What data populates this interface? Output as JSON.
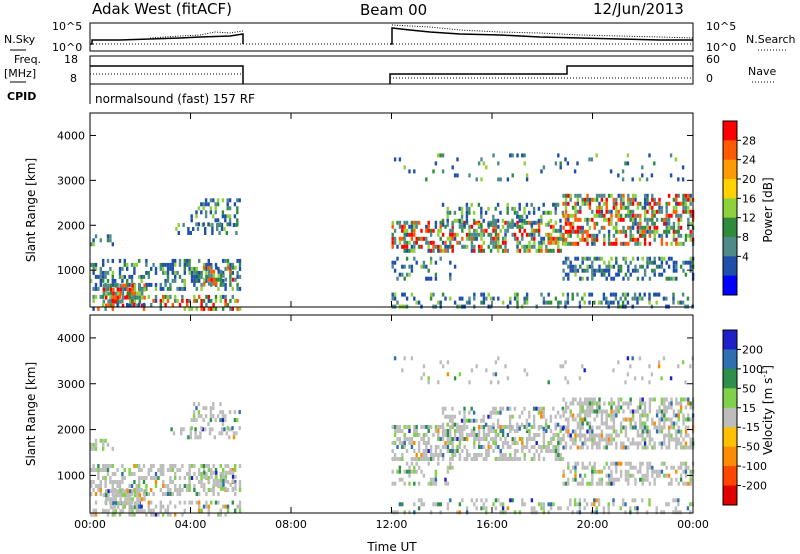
{
  "header": {
    "station": "Adak West (fitACF)",
    "beam": "Beam 00",
    "date": "12/Jun/2013"
  },
  "summary_panels": {
    "nsky_label": "N.Sky",
    "nsearch_label": "N.Search",
    "nsky_ticks": [
      "10^5",
      "10^0"
    ],
    "freq_label_1": "Freq.",
    "freq_label_2": "[MHz]",
    "freq_ticks": [
      "18",
      "8"
    ],
    "nave_label": "Nave",
    "nave_ticks": [
      "60",
      "0"
    ],
    "cpid_label": "CPID",
    "cpid_value": "normalsound (fast) 157 RF"
  },
  "chart_data": [
    {
      "type": "heatmap",
      "name": "power",
      "ylabel": "Slant Range [km]",
      "yticks": [
        "4000",
        "3000",
        "2000",
        "1000"
      ],
      "ylim": [
        180,
        4500
      ],
      "xlabel": "",
      "xticks": [
        "00:00",
        "04:00",
        "08:00",
        "12:00",
        "16:00",
        "20:00",
        "00:00"
      ],
      "xlim_hours": [
        0,
        24
      ],
      "colorbar": {
        "label": "Power [dB]",
        "ticks": [
          "28",
          "24",
          "20",
          "16",
          "12",
          "8",
          "4"
        ],
        "colors": [
          "#ff0000",
          "#ff5a00",
          "#ff9a00",
          "#ffd200",
          "#8fd13a",
          "#2e8b3c",
          "#4f8a8b",
          "#1f4fa8",
          "#0000ff"
        ]
      },
      "data_gap_hours": [
        6,
        12
      ]
    },
    {
      "type": "heatmap",
      "name": "velocity",
      "ylabel": "Slant Range [km]",
      "yticks": [
        "4000",
        "3000",
        "2000",
        "1000"
      ],
      "ylim": [
        180,
        4500
      ],
      "xlabel": "Time UT",
      "xticks": [
        "00:00",
        "04:00",
        "08:00",
        "12:00",
        "16:00",
        "20:00",
        "00:00"
      ],
      "xlim_hours": [
        0,
        24
      ],
      "colorbar": {
        "label": "Velocity [m s",
        "label_sup": "-1",
        "label_end": "]",
        "ticks": [
          "200",
          "100",
          "50",
          "15",
          "-15",
          "-50",
          "-100",
          "-200"
        ],
        "colors": [
          "#2020c8",
          "#2d6fb2",
          "#2d8f4a",
          "#7fd04a",
          "#bdbdbd",
          "#ffc000",
          "#ff8c00",
          "#ff4500",
          "#e00000"
        ]
      },
      "data_gap_hours": [
        6,
        12
      ]
    }
  ]
}
